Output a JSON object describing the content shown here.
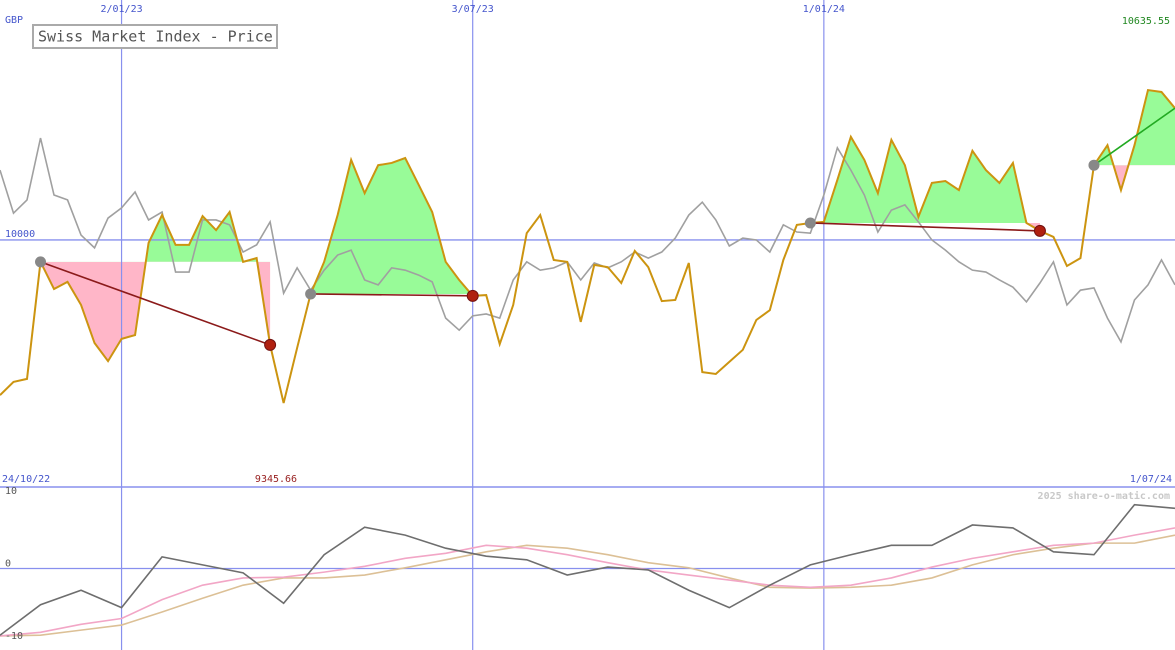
{
  "chart_data": [
    {
      "type": "line",
      "title": "Swiss Market Index - Price",
      "currency": "GBP",
      "start_date": "24/10/22",
      "end_date": "1/07/24",
      "xlim": [
        0,
        87
      ],
      "xticks": [
        {
          "value": 9,
          "label": "2/01/23"
        },
        {
          "value": 35,
          "label": "3/07/23"
        },
        {
          "value": 61,
          "label": "1/01/24"
        }
      ],
      "ylim": [
        9345.66,
        10635.55
      ],
      "yticks": [
        10000
      ],
      "series": [
        {
          "color": "#cc9410",
          "values": [
            9589,
            9624,
            9632,
            9942,
            9870,
            9889,
            9828,
            9727,
            9679,
            9738,
            9748,
            9992,
            10066,
            9987,
            9987,
            10063,
            10026,
            10074,
            9942,
            9952,
            9722,
            9568,
            9714,
            9857,
            9942,
            10066,
            10212,
            10124,
            10198,
            10204,
            10217,
            10146,
            10074,
            9942,
            9894,
            9852,
            9854,
            9724,
            9828,
            10018,
            10066,
            9947,
            9942,
            9783,
            9934,
            9928,
            9886,
            9971,
            9928,
            9838,
            9841,
            9939,
            9650,
            9645,
            9677,
            9709,
            9788,
            9814,
            9947,
            10040,
            10045,
            10048,
            10159,
            10273,
            10212,
            10124,
            10265,
            10198,
            10061,
            10151,
            10156,
            10132,
            10236,
            10185,
            10151,
            10204,
            10045,
            10024,
            10008,
            9931,
            9952,
            10198,
            10251,
            10132,
            10251,
            10397,
            10392,
            10349
          ]
        },
        {
          "color": "#a0a0a0",
          "values": [
            10185,
            10071,
            10106,
            10270,
            10119,
            10106,
            10013,
            9979,
            10058,
            10085,
            10127,
            10053,
            10074,
            9915,
            9915,
            10053,
            10053,
            10040,
            9968,
            9987,
            10048,
            9859,
            9926,
            9867,
            9920,
            9960,
            9973,
            9894,
            9881,
            9926,
            9920,
            9907,
            9889,
            9793,
            9761,
            9799,
            9804,
            9793,
            9894,
            9942,
            9920,
            9926,
            9942,
            9894,
            9939,
            9926,
            9942,
            9968,
            9952,
            9968,
            10005,
            10066,
            10100,
            10053,
            9984,
            10005,
            10000,
            9968,
            10040,
            10021,
            10018,
            10119,
            10244,
            10185,
            10119,
            10021,
            10079,
            10093,
            10048,
            10000,
            9973,
            9942,
            9920,
            9915,
            9894,
            9875,
            9836,
            9886,
            9942,
            9828,
            9867,
            9873,
            9793,
            9730,
            9841,
            9881,
            9947,
            9881
          ]
        }
      ],
      "trades": [
        {
          "entry": 3,
          "exit": 20
        },
        {
          "entry": 23,
          "exit": 35
        },
        {
          "entry": 60,
          "exit": 77
        },
        {
          "entry": 81,
          "exit": null
        }
      ]
    },
    {
      "type": "line",
      "credit": "2025 share-o-matic.com",
      "xlim": [
        0,
        87
      ],
      "ylim": [
        -10,
        10
      ],
      "yticks": [
        -10,
        0,
        10
      ],
      "x": [
        0,
        3,
        6,
        9,
        12,
        15,
        18,
        21,
        24,
        27,
        30,
        33,
        36,
        39,
        42,
        45,
        48,
        51,
        54,
        57,
        60,
        63,
        66,
        69,
        72,
        75,
        78,
        81,
        84,
        87
      ],
      "series": [
        {
          "color": "#6e6e6e",
          "values": [
            -9.2,
            -5.0,
            -3.0,
            -5.4,
            1.6,
            0.5,
            -0.6,
            -4.8,
            1.9,
            5.7,
            4.6,
            2.8,
            1.7,
            1.2,
            -0.9,
            0.2,
            -0.2,
            -3.0,
            -5.4,
            -2.3,
            0.5,
            1.9,
            3.2,
            3.2,
            6.0,
            5.6,
            2.3,
            1.9,
            8.8,
            8.3
          ]
        },
        {
          "color": "#f2a6c6",
          "values": [
            -9.3,
            -8.8,
            -7.7,
            -6.9,
            -4.3,
            -2.3,
            -1.3,
            -1.2,
            -0.5,
            0.3,
            1.4,
            2.1,
            3.2,
            2.8,
            1.9,
            0.8,
            -0.2,
            -0.9,
            -1.6,
            -2.3,
            -2.6,
            -2.3,
            -1.3,
            0.2,
            1.4,
            2.3,
            3.2,
            3.5,
            4.6,
            5.6
          ]
        },
        {
          "color": "#dcc096",
          "values": [
            -9.3,
            -9.2,
            -8.5,
            -7.8,
            -6.0,
            -4.1,
            -2.3,
            -1.3,
            -1.3,
            -0.9,
            0.1,
            1.2,
            2.3,
            3.2,
            2.8,
            1.9,
            0.8,
            0.1,
            -1.3,
            -2.6,
            -2.7,
            -2.6,
            -2.3,
            -1.3,
            0.5,
            1.9,
            2.8,
            3.5,
            3.5,
            4.6
          ]
        }
      ]
    }
  ]
}
